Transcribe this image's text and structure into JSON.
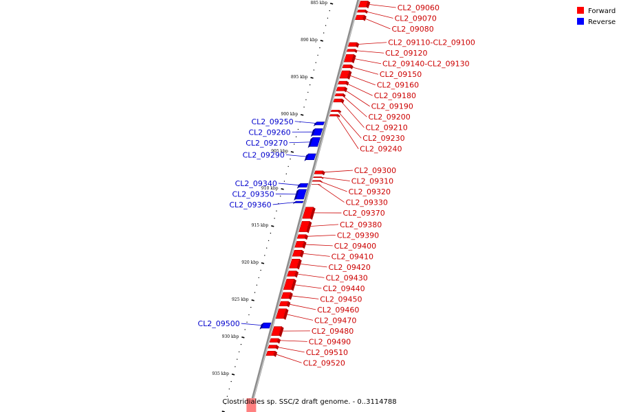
{
  "caption": "Clostridiales sp. SSC/2 draft genome. - 0..3114788",
  "legend": [
    {
      "label": "Forward",
      "color": "#ff0000"
    },
    {
      "label": "Reverse",
      "color": "#0000ff"
    }
  ],
  "ticks": [
    {
      "kbp": 885,
      "label": "885 kbp"
    },
    {
      "kbp": 890,
      "label": "890 kbp"
    },
    {
      "kbp": 895,
      "label": "895 kbp"
    },
    {
      "kbp": 900,
      "label": "900 kbp"
    },
    {
      "kbp": 905,
      "label": "905 kbp"
    },
    {
      "kbp": 910,
      "label": "910 kbp"
    },
    {
      "kbp": 915,
      "label": "915 kbp"
    },
    {
      "kbp": 920,
      "label": "920 kbp"
    },
    {
      "kbp": 925,
      "label": "925 kbp"
    },
    {
      "kbp": 930,
      "label": "930 kbp"
    },
    {
      "kbp": 935,
      "label": "935 kbp"
    }
  ],
  "forward_genes": [
    {
      "label": "CL2_09060",
      "start": 884.6,
      "end": 885.6
    },
    {
      "label": "CL2_09070",
      "start": 885.8,
      "end": 886.3
    },
    {
      "label": "CL2_09080",
      "start": 886.5,
      "end": 887.3
    },
    {
      "label": "CL2_09110-CL2_09100",
      "start": 890.2,
      "end": 890.9
    },
    {
      "label": "CL2_09120",
      "start": 891.1,
      "end": 891.6
    },
    {
      "label": "CL2_09140-CL2_09130",
      "start": 891.8,
      "end": 893.0
    },
    {
      "label": "CL2_09150",
      "start": 893.2,
      "end": 893.8
    },
    {
      "label": "CL2_09160",
      "start": 894.0,
      "end": 895.2
    },
    {
      "label": "CL2_09180",
      "start": 895.4,
      "end": 896.0
    },
    {
      "label": "CL2_09190",
      "start": 896.2,
      "end": 896.9
    },
    {
      "label": "CL2_09200",
      "start": 897.1,
      "end": 897.6
    },
    {
      "label": "CL2_09210",
      "start": 897.8,
      "end": 898.4
    },
    {
      "label": "CL2_09230",
      "start": 899.3,
      "end": 899.7
    },
    {
      "label": "CL2_09240",
      "start": 899.9,
      "end": 900.3
    },
    {
      "label": "CL2_09300",
      "start": 907.5,
      "end": 908.1
    },
    {
      "label": "CL2_09310",
      "start": 908.3,
      "end": 908.6
    },
    {
      "label": "CL2_09320",
      "start": 908.8,
      "end": 909.1
    },
    {
      "label": "CL2_09330",
      "start": 909.3,
      "end": 909.5
    },
    {
      "label": "CL2_09370",
      "start": 912.4,
      "end": 914.1
    },
    {
      "label": "CL2_09380",
      "start": 914.3,
      "end": 915.9
    },
    {
      "label": "CL2_09390",
      "start": 916.1,
      "end": 916.8
    },
    {
      "label": "CL2_09400",
      "start": 917.0,
      "end": 918.0
    },
    {
      "label": "CL2_09410",
      "start": 918.2,
      "end": 919.2
    },
    {
      "label": "CL2_09420",
      "start": 919.4,
      "end": 920.8
    },
    {
      "label": "CL2_09430",
      "start": 921.0,
      "end": 921.9
    },
    {
      "label": "CL2_09440",
      "start": 922.1,
      "end": 923.7
    },
    {
      "label": "CL2_09450",
      "start": 923.9,
      "end": 924.9
    },
    {
      "label": "CL2_09460",
      "start": 925.1,
      "end": 925.9
    },
    {
      "label": "CL2_09470",
      "start": 926.1,
      "end": 927.6
    },
    {
      "label": "CL2_09480",
      "start": 928.5,
      "end": 929.9
    },
    {
      "label": "CL2_09490",
      "start": 930.1,
      "end": 930.8
    },
    {
      "label": "CL2_09510",
      "start": 931.0,
      "end": 931.6
    },
    {
      "label": "CL2_09520",
      "start": 931.8,
      "end": 932.6
    }
  ],
  "reverse_genes": [
    {
      "label": "CL2_09250",
      "start": 900.9,
      "end": 901.5
    },
    {
      "label": "CL2_09260",
      "start": 901.8,
      "end": 902.9
    },
    {
      "label": "CL2_09270",
      "start": 903.0,
      "end": 904.4
    },
    {
      "label": "CL2_09290",
      "start": 905.2,
      "end": 906.2
    },
    {
      "label": "CL2_09340",
      "start": 909.2,
      "end": 909.9
    },
    {
      "label": "CL2_09350",
      "start": 910.0,
      "end": 911.5
    },
    {
      "label": "CL2_09360",
      "start": 911.6,
      "end": 912.0
    },
    {
      "label": "CL2_09500",
      "start": 928.0,
      "end": 928.9
    }
  ]
}
